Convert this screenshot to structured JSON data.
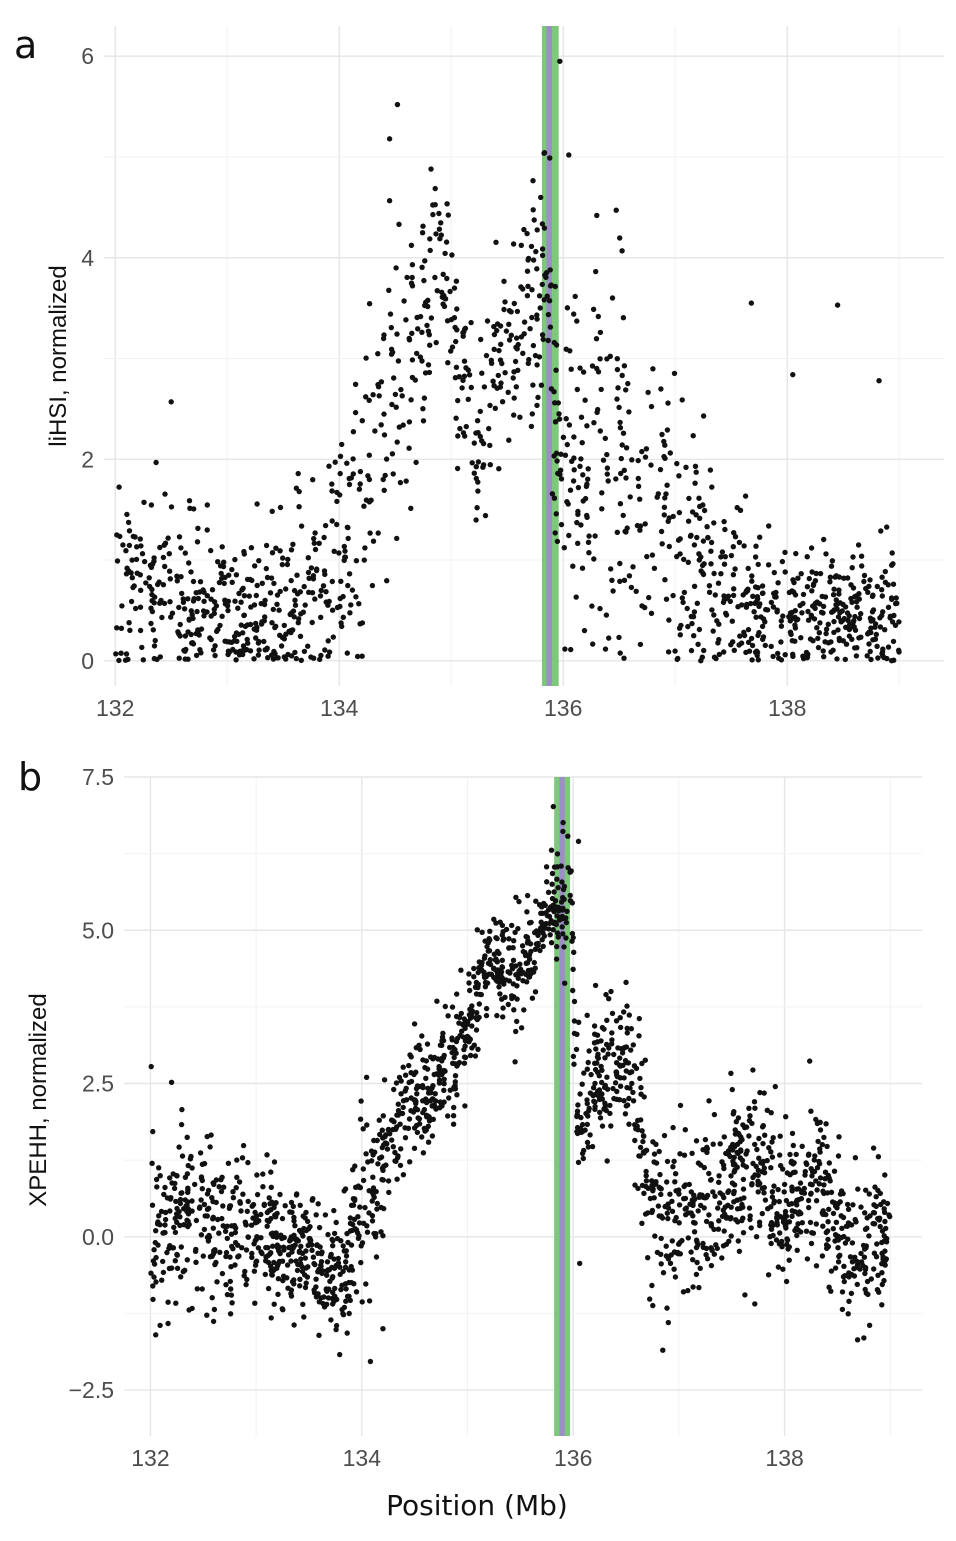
{
  "chart_data": [
    {
      "type": "scatter",
      "panel_label": "a",
      "title": "",
      "xlabel": "",
      "ylabel": "liHSI, normalized",
      "xlim": [
        131.9,
        139.4
      ],
      "ylim": [
        -0.25,
        6.3
      ],
      "xticks": [
        132,
        134,
        136,
        138
      ],
      "yticks": [
        0,
        2,
        4,
        6
      ],
      "xtick_labels": [
        "132",
        "134",
        "136",
        "138"
      ],
      "ytick_labels": [
        "0",
        "2",
        "4",
        "6"
      ],
      "grid": true,
      "highlight_bands": [
        {
          "from": 135.81,
          "to": 135.96,
          "color": "#7dc87a"
        },
        {
          "from": 135.85,
          "to": 135.9,
          "color": "#9b8fc4"
        }
      ],
      "point_color": "#111111",
      "profile": [
        [
          132.0,
          0.6,
          0.45
        ],
        [
          132.5,
          0.75,
          0.5
        ],
        [
          133.0,
          0.45,
          0.38
        ],
        [
          133.5,
          0.55,
          0.45
        ],
        [
          133.9,
          0.85,
          0.55
        ],
        [
          134.2,
          1.6,
          0.8
        ],
        [
          134.5,
          2.9,
          0.9
        ],
        [
          134.9,
          3.9,
          0.45
        ],
        [
          135.2,
          2.3,
          0.5
        ],
        [
          135.6,
          3.2,
          0.5
        ],
        [
          135.85,
          3.8,
          0.6
        ],
        [
          136.0,
          1.7,
          1.0
        ],
        [
          136.3,
          2.4,
          1.0
        ],
        [
          136.9,
          1.4,
          0.75
        ],
        [
          137.4,
          0.65,
          0.45
        ],
        [
          138.0,
          0.5,
          0.35
        ],
        [
          139.0,
          0.4,
          0.3
        ]
      ],
      "point_count": 1400,
      "notable_points": [
        {
          "x": 135.97,
          "y": 5.95
        },
        {
          "x": 134.52,
          "y": 5.52
        },
        {
          "x": 134.45,
          "y": 5.18
        },
        {
          "x": 136.05,
          "y": 5.02
        },
        {
          "x": 134.82,
          "y": 4.88
        },
        {
          "x": 135.88,
          "y": 4.99
        },
        {
          "x": 136.3,
          "y": 4.42
        },
        {
          "x": 137.68,
          "y": 3.55
        },
        {
          "x": 138.45,
          "y": 3.53
        },
        {
          "x": 138.82,
          "y": 2.78
        },
        {
          "x": 138.05,
          "y": 2.84
        },
        {
          "x": 132.5,
          "y": 2.57
        },
        {
          "x": 135.94,
          "y": 2.06
        },
        {
          "x": 135.98,
          "y": 2.05
        },
        {
          "x": 136.02,
          "y": 2.04
        }
      ]
    },
    {
      "type": "scatter",
      "panel_label": "b",
      "title": "",
      "xlabel": "Position (Mb)",
      "ylabel": "XPEHH, normalized",
      "xlim": [
        131.75,
        139.3
      ],
      "ylim": [
        -3.25,
        7.5
      ],
      "xticks": [
        132,
        134,
        136,
        138
      ],
      "yticks": [
        -2.5,
        0.0,
        2.5,
        5.0,
        7.5
      ],
      "xtick_labels": [
        "132",
        "134",
        "136",
        "138"
      ],
      "ytick_labels": [
        "−2.5",
        "0.0",
        "2.5",
        "5.0",
        "7.5"
      ],
      "grid": true,
      "highlight_bands": [
        {
          "from": 135.82,
          "to": 135.97,
          "color": "#7dc87a"
        },
        {
          "from": 135.87,
          "to": 135.92,
          "color": "#9b8fc4"
        }
      ],
      "point_color": "#111111",
      "profile": [
        [
          132.0,
          0.2,
          0.9
        ],
        [
          132.5,
          0.3,
          0.7
        ],
        [
          133.0,
          0.1,
          0.6
        ],
        [
          133.5,
          -0.4,
          0.5
        ],
        [
          133.8,
          -0.7,
          0.4
        ],
        [
          134.0,
          0.5,
          0.9
        ],
        [
          134.3,
          1.8,
          0.5
        ],
        [
          134.7,
          2.6,
          0.45
        ],
        [
          135.0,
          3.4,
          0.5
        ],
        [
          135.2,
          4.5,
          0.3
        ],
        [
          135.5,
          4.3,
          0.5
        ],
        [
          135.75,
          5.3,
          0.45
        ],
        [
          135.97,
          5.6,
          0.5
        ],
        [
          136.05,
          1.8,
          0.8
        ],
        [
          136.2,
          2.5,
          0.6
        ],
        [
          136.5,
          2.9,
          0.5
        ],
        [
          136.8,
          0.3,
          0.8
        ],
        [
          137.3,
          0.5,
          0.55
        ],
        [
          137.7,
          1.2,
          0.7
        ],
        [
          138.0,
          0.4,
          0.6
        ],
        [
          138.3,
          0.9,
          0.6
        ],
        [
          138.7,
          -0.4,
          0.6
        ],
        [
          139.0,
          0.1,
          0.5
        ]
      ],
      "point_count": 2000,
      "notable_points": [
        {
          "x": 136.05,
          "y": 6.45
        },
        {
          "x": 136.5,
          "y": 4.15
        },
        {
          "x": 132.05,
          "y": -1.6
        },
        {
          "x": 134.2,
          "y": -1.5
        },
        {
          "x": 138.75,
          "y": -1.65
        },
        {
          "x": 136.9,
          "y": -1.4
        },
        {
          "x": 137.7,
          "y": 2.72
        },
        {
          "x": 132.2,
          "y": 2.52
        }
      ]
    }
  ]
}
